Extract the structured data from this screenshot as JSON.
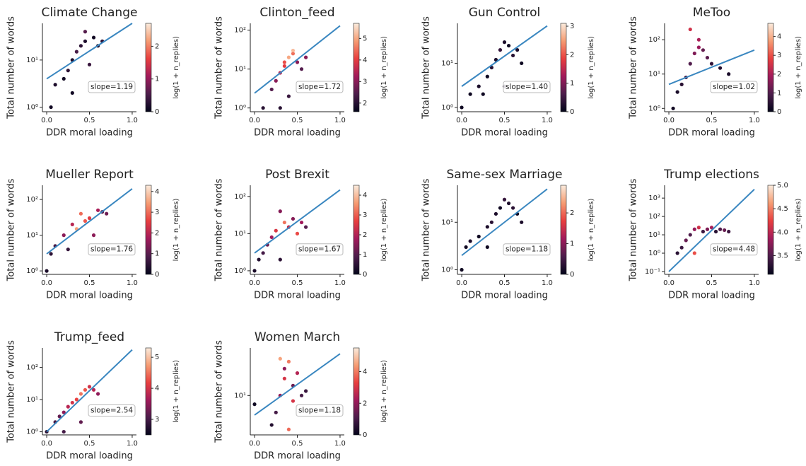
{
  "chart_data": [
    {
      "type": "scatter",
      "title": "Climate Change",
      "xlabel": "DDR moral loading",
      "ylabel": "Total number of words",
      "colorbar_label": "log(1 + n_replies)",
      "annotation": "slope=1.19",
      "colormap": "rocket",
      "fit_color": "#3a87c0",
      "ylog": true,
      "xlim": [
        -0.05,
        1.05
      ],
      "xticks": [
        {
          "value": 0,
          "label": "0.0"
        },
        {
          "value": 0.5,
          "label": "0.5"
        },
        {
          "value": 1,
          "label": "1.0"
        }
      ],
      "ylim": [
        0.8,
        60
      ],
      "yticks": [
        {
          "value": 1,
          "label": "10⁰"
        },
        {
          "value": 10,
          "label": "10¹"
        }
      ],
      "clim": [
        0,
        2.7
      ],
      "cticks": [
        0,
        1,
        2
      ],
      "x": [
        0.05,
        0.1,
        0.2,
        0.25,
        0.3,
        0.35,
        0.4,
        0.45,
        0.5,
        0.55,
        0.6,
        0.65,
        0.3,
        0.45
      ],
      "y": [
        1,
        3,
        4,
        6,
        10,
        15,
        20,
        25,
        8,
        30,
        20,
        25,
        2,
        40
      ],
      "c": [
        0.1,
        0.2,
        0.1,
        0.3,
        0.2,
        0.5,
        0.3,
        0.2,
        0.4,
        0.1,
        0.2,
        0.3,
        0.1,
        0.6
      ],
      "fit_x": [
        0,
        1
      ],
      "fit_y": [
        4,
        60
      ]
    },
    {
      "type": "scatter",
      "title": "Clinton_feed",
      "xlabel": "DDR moral loading",
      "ylabel": "Total number of words",
      "colorbar_label": "log(1 + n_replies)",
      "annotation": "slope=1.72",
      "colormap": "rocket",
      "fit_color": "#3a87c0",
      "ylog": true,
      "xlim": [
        -0.05,
        1.05
      ],
      "xticks": [
        {
          "value": 0,
          "label": "0.0"
        },
        {
          "value": 0.5,
          "label": "0.5"
        },
        {
          "value": 1,
          "label": "1.0"
        }
      ],
      "ylim": [
        0.8,
        150
      ],
      "yticks": [
        {
          "value": 1,
          "label": "10⁰"
        },
        {
          "value": 10,
          "label": "10¹"
        },
        {
          "value": 100,
          "label": "10²"
        }
      ],
      "clim": [
        1.6,
        5.7
      ],
      "cticks": [
        2,
        3,
        4,
        5
      ],
      "x": [
        0.1,
        0.2,
        0.25,
        0.3,
        0.35,
        0.4,
        0.45,
        0.5,
        0.55,
        0.6,
        0.3,
        0.4,
        0.45,
        0.35
      ],
      "y": [
        1,
        3,
        5,
        8,
        12,
        20,
        25,
        15,
        10,
        20,
        1,
        2,
        30,
        15
      ],
      "c": [
        2,
        2.5,
        3,
        3.5,
        4,
        5,
        4.5,
        3,
        2.5,
        3,
        2,
        2.2,
        5.2,
        4.2
      ],
      "fit_x": [
        0,
        1
      ],
      "fit_y": [
        2.4,
        130
      ]
    },
    {
      "type": "scatter",
      "title": "Gun Control",
      "xlabel": "DDR moral loading",
      "ylabel": "Total number of words",
      "colorbar_label": "log(1 + n_replies)",
      "annotation": "slope=1.40",
      "colormap": "rocket",
      "fit_color": "#3a87c0",
      "ylog": true,
      "xlim": [
        -0.05,
        1.05
      ],
      "xticks": [
        {
          "value": 0,
          "label": "0.0"
        },
        {
          "value": 0.5,
          "label": "0.5"
        },
        {
          "value": 1,
          "label": "1.0"
        }
      ],
      "ylim": [
        0.8,
        80
      ],
      "yticks": [
        {
          "value": 1,
          "label": "10⁰"
        },
        {
          "value": 10,
          "label": "10¹"
        }
      ],
      "clim": [
        0,
        3.1
      ],
      "cticks": [
        0,
        1,
        2,
        3
      ],
      "x": [
        0.0,
        0.1,
        0.2,
        0.3,
        0.35,
        0.4,
        0.45,
        0.5,
        0.55,
        0.6,
        0.65,
        0.7,
        0.25,
        0.5
      ],
      "y": [
        1,
        2,
        3,
        5,
        8,
        12,
        20,
        30,
        25,
        15,
        20,
        10,
        2,
        3
      ],
      "c": [
        0.1,
        0.1,
        0.2,
        0.1,
        0.3,
        0.2,
        0.4,
        0.2,
        0.1,
        0.3,
        0.2,
        0.1,
        0.1,
        0.2
      ],
      "fit_x": [
        0,
        1
      ],
      "fit_y": [
        3,
        70
      ]
    },
    {
      "type": "scatter",
      "title": "MeToo",
      "xlabel": "DDR moral loading",
      "ylabel": "Total number of words",
      "colorbar_label": "log(1 + n_replies)",
      "annotation": "slope=1.02",
      "colormap": "rocket",
      "fit_color": "#3a87c0",
      "ylog": true,
      "xlim": [
        -0.05,
        1.05
      ],
      "xticks": [
        {
          "value": 0,
          "label": "0.0"
        },
        {
          "value": 0.5,
          "label": "0.5"
        },
        {
          "value": 1,
          "label": "1.0"
        }
      ],
      "ylim": [
        0.8,
        300
      ],
      "yticks": [
        {
          "value": 1,
          "label": "10⁰"
        },
        {
          "value": 10,
          "label": "10¹"
        },
        {
          "value": 100,
          "label": "10²"
        }
      ],
      "clim": [
        0,
        4.7
      ],
      "cticks": [
        0,
        1,
        2,
        3,
        4
      ],
      "x": [
        0.05,
        0.1,
        0.15,
        0.2,
        0.25,
        0.3,
        0.35,
        0.4,
        0.5,
        0.6,
        0.7,
        0.25,
        0.35,
        0.45
      ],
      "y": [
        1,
        3,
        5,
        8,
        20,
        40,
        100,
        50,
        20,
        15,
        10,
        200,
        60,
        30
      ],
      "c": [
        0.2,
        0.3,
        0.5,
        0.8,
        1,
        1.5,
        2,
        1.2,
        0.6,
        0.4,
        0.3,
        2.5,
        1.8,
        1.1
      ],
      "fit_x": [
        0,
        1
      ],
      "fit_y": [
        5,
        50
      ]
    },
    {
      "type": "scatter",
      "title": "Mueller Report",
      "xlabel": "DDR moral loading",
      "ylabel": "Total number of words",
      "colorbar_label": "log(1 + n_replies)",
      "annotation": "slope=1.76",
      "colormap": "rocket",
      "fit_color": "#3a87c0",
      "ylog": true,
      "xlim": [
        -0.05,
        1.05
      ],
      "xticks": [
        {
          "value": 0,
          "label": "0.0"
        },
        {
          "value": 0.5,
          "label": "0.5"
        },
        {
          "value": 1,
          "label": "1.0"
        }
      ],
      "ylim": [
        0.8,
        250
      ],
      "yticks": [
        {
          "value": 1,
          "label": "10⁰"
        },
        {
          "value": 10,
          "label": "10¹"
        },
        {
          "value": 100,
          "label": "10²"
        }
      ],
      "clim": [
        0,
        4.3
      ],
      "cticks": [
        0,
        1,
        2,
        3,
        4
      ],
      "x": [
        0,
        0.05,
        0.1,
        0.2,
        0.3,
        0.4,
        0.5,
        0.6,
        0.7,
        0.35,
        0.45,
        0.55,
        0.25,
        0.65
      ],
      "y": [
        1,
        3,
        5,
        10,
        20,
        40,
        30,
        50,
        40,
        15,
        25,
        10,
        4,
        45
      ],
      "c": [
        0.3,
        0.5,
        0.8,
        1.5,
        2,
        3,
        2.5,
        1.8,
        1.2,
        3.5,
        2.8,
        1.5,
        0.6,
        1.0
      ],
      "fit_x": [
        0,
        1
      ],
      "fit_y": [
        3,
        200
      ]
    },
    {
      "type": "scatter",
      "title": "Post Brexit",
      "xlabel": "DDR moral loading",
      "ylabel": "Total number of words",
      "colorbar_label": "log(1 + n_replies)",
      "annotation": "slope=1.67",
      "colormap": "rocket",
      "fit_color": "#3a87c0",
      "ylog": true,
      "xlim": [
        -0.05,
        1.05
      ],
      "xticks": [
        {
          "value": 0,
          "label": "0.0"
        },
        {
          "value": 0.5,
          "label": "0.5"
        },
        {
          "value": 1,
          "label": "1.0"
        }
      ],
      "ylim": [
        0.8,
        200
      ],
      "yticks": [
        {
          "value": 1,
          "label": "10⁰"
        },
        {
          "value": 10,
          "label": "10¹"
        },
        {
          "value": 100,
          "label": "10²"
        }
      ],
      "clim": [
        0,
        4.5
      ],
      "cticks": [
        0,
        1,
        2,
        3,
        4
      ],
      "x": [
        0,
        0.05,
        0.1,
        0.15,
        0.2,
        0.25,
        0.3,
        0.35,
        0.4,
        0.45,
        0.5,
        0.55,
        0.6,
        0.3
      ],
      "y": [
        1,
        2,
        3,
        5,
        8,
        12,
        40,
        20,
        15,
        25,
        10,
        20,
        15,
        2
      ],
      "c": [
        0.3,
        0.4,
        0.8,
        1.2,
        1.8,
        2.5,
        1.5,
        3.2,
        2.2,
        1.5,
        2.8,
        1.8,
        1.0,
        0.5
      ],
      "fit_x": [
        0,
        1
      ],
      "fit_y": [
        3,
        150
      ]
    },
    {
      "type": "scatter",
      "title": "Same-sex Marriage",
      "xlabel": "DDR moral loading",
      "ylabel": "Total number of words",
      "colorbar_label": "log(1 + n_replies)",
      "annotation": "slope=1.18",
      "colormap": "rocket",
      "fit_color": "#3a87c0",
      "ylog": true,
      "xlim": [
        -0.05,
        1.05
      ],
      "xticks": [
        {
          "value": 0,
          "label": "0.0"
        },
        {
          "value": 0.5,
          "label": "0.5"
        },
        {
          "value": 1,
          "label": "1.0"
        }
      ],
      "ylim": [
        0.8,
        60
      ],
      "yticks": [
        {
          "value": 1,
          "label": "10⁰"
        },
        {
          "value": 10,
          "label": "10¹"
        }
      ],
      "clim": [
        0,
        2.9
      ],
      "cticks": [
        0,
        1,
        2
      ],
      "x": [
        0,
        0.05,
        0.1,
        0.2,
        0.3,
        0.35,
        0.4,
        0.45,
        0.5,
        0.55,
        0.6,
        0.65,
        0.7,
        0.3
      ],
      "y": [
        1,
        3,
        4,
        5,
        8,
        10,
        15,
        20,
        30,
        25,
        20,
        15,
        10,
        3
      ],
      "c": [
        0.1,
        0.1,
        0.2,
        0.1,
        0.2,
        0.3,
        0.2,
        0.1,
        0.4,
        0.2,
        0.3,
        0.1,
        0.2,
        0.1
      ],
      "fit_x": [
        0,
        1
      ],
      "fit_y": [
        2,
        50
      ]
    },
    {
      "type": "scatter",
      "title": "Trump elections",
      "xlabel": "DDR moral loading",
      "ylabel": "Total number of words",
      "colorbar_label": "log(1 + n_replies)",
      "annotation": "slope=4.48",
      "colormap": "rocket",
      "fit_color": "#3a87c0",
      "ylog": true,
      "xlim": [
        -0.05,
        1.05
      ],
      "xticks": [
        {
          "value": 0,
          "label": "0.0"
        },
        {
          "value": 0.5,
          "label": "0.5"
        },
        {
          "value": 1,
          "label": "1.0"
        }
      ],
      "ylim": [
        0.07,
        5000
      ],
      "yticks": [
        {
          "value": 0.1,
          "label": "10⁻¹"
        },
        {
          "value": 1,
          "label": "10⁰"
        },
        {
          "value": 10,
          "label": "10¹"
        },
        {
          "value": 100,
          "label": "10²"
        },
        {
          "value": 1000,
          "label": "10³"
        }
      ],
      "clim": [
        3.1,
        5.0
      ],
      "cticks": [
        3.5,
        {
          "value": 4,
          "label": "4.0"
        },
        4.5,
        {
          "value": 5,
          "label": "5.0"
        }
      ],
      "x": [
        0.1,
        0.15,
        0.2,
        0.25,
        0.3,
        0.35,
        0.4,
        0.45,
        0.5,
        0.55,
        0.6,
        0.65,
        0.7,
        0.3
      ],
      "y": [
        1,
        2,
        5,
        10,
        20,
        25,
        15,
        20,
        25,
        15,
        20,
        18,
        15,
        1
      ],
      "c": [
        3.3,
        3.4,
        3.6,
        3.5,
        3.8,
        4.1,
        3.4,
        3.7,
        3.9,
        3.3,
        3.5,
        3.6,
        3.4,
        4.3
      ],
      "fit_x": [
        0,
        1
      ],
      "fit_y": [
        0.1,
        3000
      ]
    },
    {
      "type": "scatter",
      "title": "Trump_feed",
      "xlabel": "DDR moral loading",
      "ylabel": "Total number of words",
      "colorbar_label": "log(1 + n_replies)",
      "annotation": "slope=2.54",
      "colormap": "rocket",
      "fit_color": "#3a87c0",
      "ylog": true,
      "xlim": [
        -0.05,
        1.05
      ],
      "xticks": [
        {
          "value": 0,
          "label": "0.0"
        },
        {
          "value": 0.5,
          "label": "0.5"
        },
        {
          "value": 1,
          "label": "1.0"
        }
      ],
      "ylim": [
        0.8,
        400
      ],
      "yticks": [
        {
          "value": 1,
          "label": "10⁰"
        },
        {
          "value": 10,
          "label": "10¹"
        },
        {
          "value": 100,
          "label": "10²"
        }
      ],
      "clim": [
        2.5,
        5.3
      ],
      "cticks": [
        3,
        4,
        5
      ],
      "x": [
        0.0,
        0.1,
        0.15,
        0.2,
        0.25,
        0.3,
        0.35,
        0.4,
        0.45,
        0.5,
        0.55,
        0.6,
        0.2,
        0.4
      ],
      "y": [
        1,
        2,
        3,
        4,
        6,
        8,
        10,
        15,
        20,
        25,
        20,
        15,
        1,
        2
      ],
      "c": [
        2.8,
        3,
        3.2,
        3.5,
        3.8,
        4,
        4.2,
        4.5,
        4.3,
        4,
        3.8,
        3.5,
        3,
        3.2
      ],
      "fit_x": [
        0,
        1
      ],
      "fit_y": [
        1,
        350
      ]
    },
    {
      "type": "scatter",
      "title": "Women March",
      "xlabel": "DDR moral loading",
      "ylabel": "Total number of words",
      "colorbar_label": "log(1 + n_replies)",
      "annotation": "slope=1.18",
      "colormap": "rocket",
      "fit_color": "#3a87c0",
      "ylog": true,
      "xlim": [
        -0.05,
        1.05
      ],
      "xticks": [
        {
          "value": 0,
          "label": "0.0"
        },
        {
          "value": 0.5,
          "label": "0.5"
        },
        {
          "value": 1,
          "label": "1.0"
        }
      ],
      "ylim": [
        2,
        70
      ],
      "yticks": [
        {
          "value": 10,
          "label": "10¹"
        }
      ],
      "clim": [
        0,
        5.5
      ],
      "cticks": [
        0,
        2,
        4
      ],
      "x": [
        0,
        0.2,
        0.25,
        0.3,
        0.35,
        0.4,
        0.45,
        0.5,
        0.55,
        0.6,
        0.3,
        0.4,
        0.35,
        0.45
      ],
      "y": [
        7,
        3,
        5,
        10,
        20,
        40,
        15,
        25,
        10,
        12,
        45,
        2.5,
        30,
        8
      ],
      "c": [
        0.2,
        0.5,
        1,
        2,
        3,
        4,
        1.5,
        2.5,
        1,
        0.8,
        4.5,
        3.8,
        2,
        3
      ],
      "fit_x": [
        0,
        1
      ],
      "fit_y": [
        4.5,
        55
      ]
    }
  ]
}
